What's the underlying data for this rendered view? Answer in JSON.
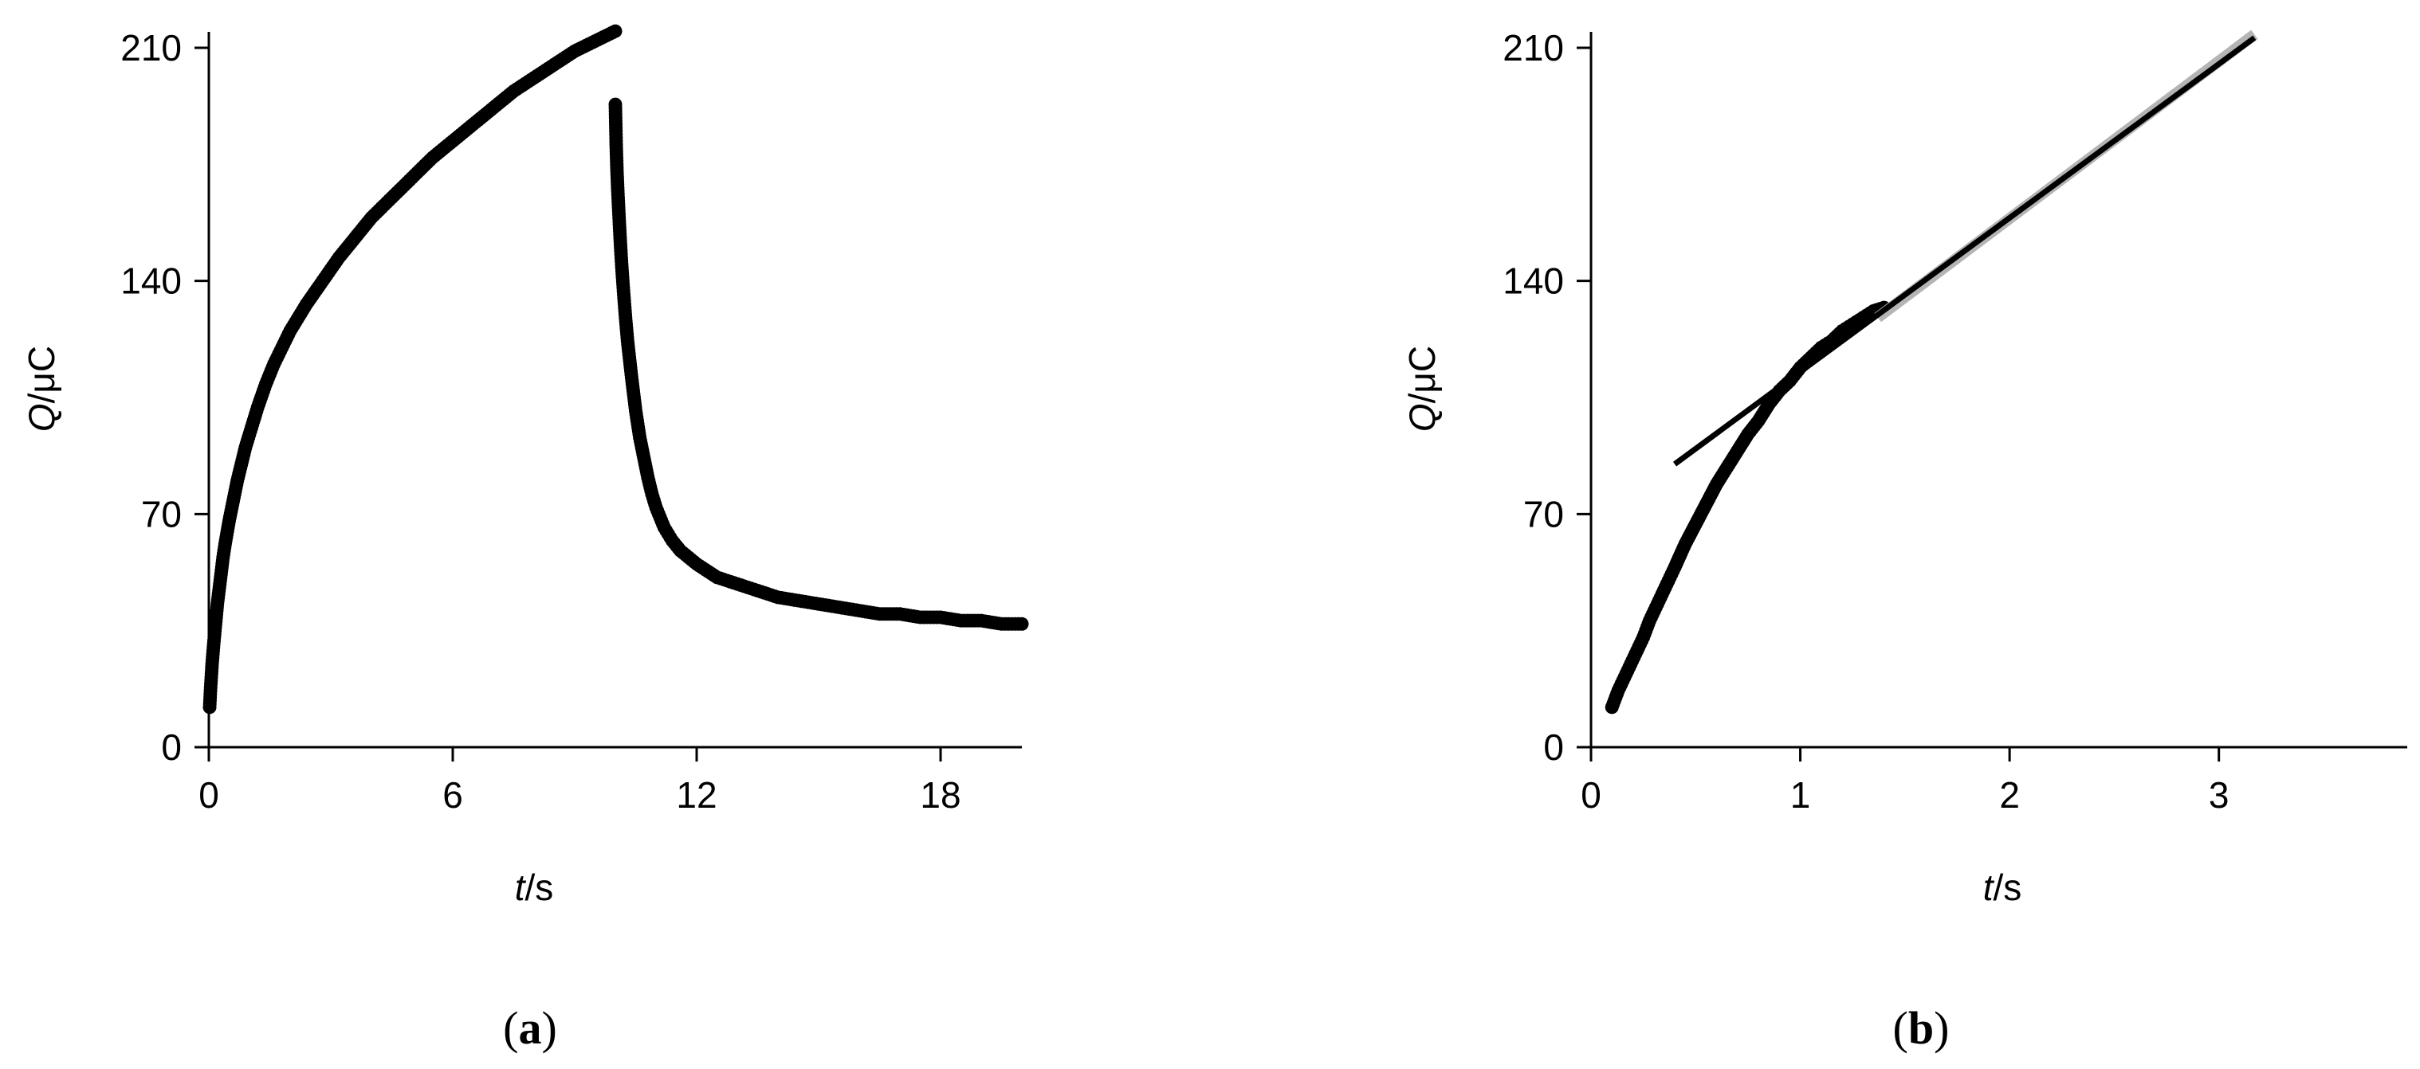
{
  "chart_data": [
    {
      "panel_label": "a",
      "type": "scatter",
      "title": "",
      "xlabel_italic": "t",
      "xlabel_unit": "/s",
      "ylabel_italic": "Q",
      "ylabel_unit": "/μC",
      "xlim": [
        0,
        20
      ],
      "ylim": [
        0,
        210
      ],
      "xticks": [
        0,
        6,
        12,
        18
      ],
      "yticks": [
        0,
        70,
        140,
        210
      ],
      "grid": false,
      "series": [
        {
          "marker": "dot",
          "color": "#000000",
          "x": [
            0.02,
            0.04,
            0.06,
            0.08,
            0.1,
            0.12,
            0.15,
            0.18,
            0.21,
            0.25,
            0.3,
            0.35,
            0.4,
            0.5,
            0.6,
            0.7,
            0.8,
            0.9,
            1.0,
            1.2,
            1.4,
            1.6,
            1.8,
            2.0,
            2.4,
            2.8,
            3.2,
            3.6,
            4.0,
            4.5,
            5.0,
            5.5,
            6.0,
            6.5,
            7.0,
            7.5,
            8.0,
            8.5,
            9.0,
            9.5,
            10.0,
            10.0,
            10.02,
            10.04,
            10.06,
            10.08,
            10.1,
            10.13,
            10.16,
            10.2,
            10.25,
            10.3,
            10.4,
            10.5,
            10.6,
            10.7,
            10.8,
            10.9,
            11.0,
            11.2,
            11.4,
            11.6,
            11.8,
            12.0,
            12.5,
            13.0,
            13.5,
            14.0,
            14.5,
            15.0,
            15.5,
            16.0,
            16.5,
            17.0,
            17.5,
            18.0,
            18.5,
            19.0,
            19.5,
            20.0
          ],
          "y": [
            12,
            17,
            21,
            25,
            28,
            31,
            35,
            39,
            43,
            47,
            52,
            57,
            61,
            68,
            74,
            80,
            85,
            90,
            94,
            102,
            109,
            115,
            120,
            125,
            133,
            140,
            147,
            153,
            159,
            165,
            171,
            177,
            182,
            187,
            192,
            197,
            201,
            205,
            209,
            212,
            215,
            193,
            181,
            173,
            167,
            162,
            157,
            150,
            144,
            137,
            129,
            122,
            111,
            101,
            93,
            87,
            81,
            76,
            72,
            66,
            62,
            59,
            57,
            55,
            51,
            49,
            47,
            45,
            44,
            43,
            42,
            41,
            40,
            40,
            39,
            39,
            38,
            38,
            37,
            37
          ]
        }
      ]
    },
    {
      "panel_label": "b",
      "type": "scatter",
      "title": "",
      "xlabel_italic": "t",
      "xlabel_unit": "/s",
      "ylabel_italic": "Q",
      "ylabel_unit": "/μC",
      "xlim": [
        0,
        3.9
      ],
      "ylim": [
        0,
        210
      ],
      "xticks": [
        0,
        1,
        2,
        3
      ],
      "yticks": [
        0,
        70,
        140,
        210
      ],
      "grid": false,
      "series": [
        {
          "marker": "dot",
          "color": "#000000",
          "x": [
            0.1,
            0.13,
            0.16,
            0.19,
            0.22,
            0.25,
            0.28,
            0.31,
            0.34,
            0.37,
            0.4,
            0.45,
            0.5,
            0.55,
            0.6,
            0.65,
            0.7,
            0.75,
            0.8,
            0.85,
            0.9,
            0.95,
            1.0,
            1.05,
            1.1,
            1.15,
            1.2,
            1.25,
            1.3,
            1.35,
            1.4
          ],
          "y": [
            12,
            17,
            21,
            25,
            29,
            33,
            38,
            42,
            46,
            50,
            54,
            61,
            67,
            73,
            79,
            84,
            89,
            94,
            98,
            103,
            107,
            110,
            114,
            117,
            120,
            122,
            125,
            127,
            129,
            131,
            132
          ]
        },
        {
          "marker": "line",
          "color": "#b4b4b4",
          "x": [
            1.37,
            3.17
          ],
          "y": [
            129,
            214
          ]
        },
        {
          "marker": "line",
          "color": "#000000",
          "x": [
            0.4,
            3.17
          ],
          "y": [
            85,
            213
          ]
        }
      ]
    }
  ]
}
